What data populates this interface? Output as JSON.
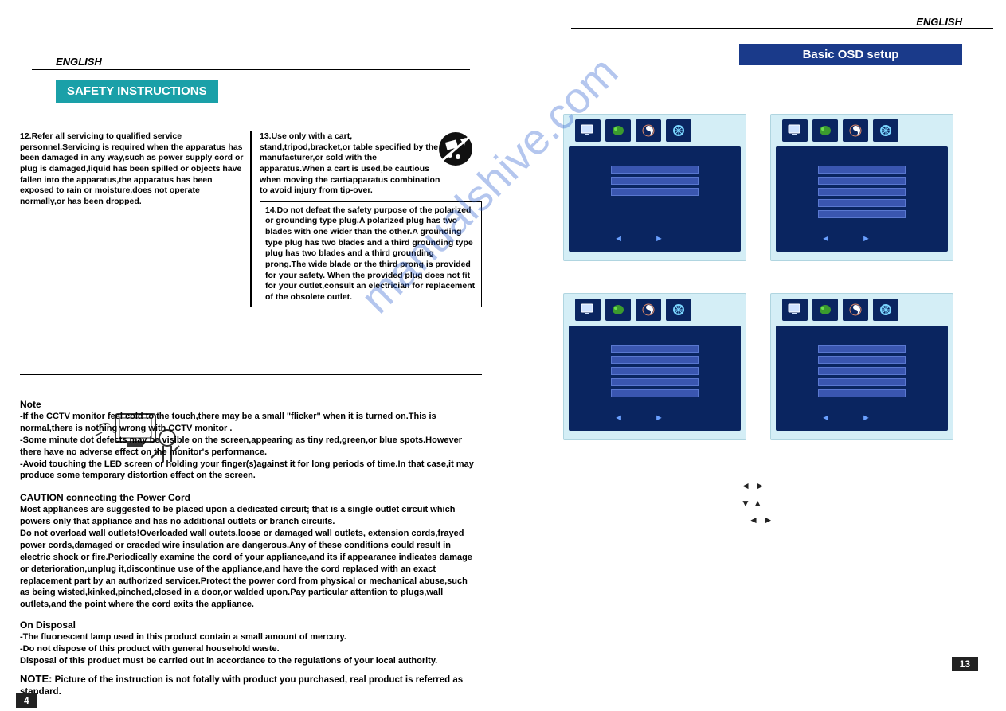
{
  "lang": "ENGLISH",
  "left": {
    "banner": "SAFETY INSTRUCTIONS",
    "item12": "12.Refer all servicing to qualified service personnel.Servicing is required when the apparatus has been damaged in any way,such as power supply cord or plug is damaged,liquid has been spilled or objects have fallen into the apparatus,the apparatus has been exposed to rain or moisture,does not operate normally,or has been dropped.",
    "item13": "13.Use only with a cart, stand,tripod,bracket,or table specified by the manufacturer,or sold with the apparatus.When a cart is used,be cautious when moving the cart\\apparatus combination to avoid injury from tip-over.",
    "item14": "14.Do not defeat the safety purpose of the polarized or grounding type plug.A polarized plug has two blades with one wider than the other.A grounding type plug has two blades and a third grounding type plug has two blades and a third grounding prong.The wide blade or the third prong is provided for your safety. When the provided plug does not fit for your outlet,consult an electrician for replacement of the obsolete outlet.",
    "noteTitle": "Note",
    "note1": "-If the CCTV monitor  feel cold to the touch,there may be a small \"flicker\" when it is turned on.This is normal,there is nothing wrong with CCTV monitor .",
    "note2": "-Some minute dot defects may be visible on the screen,appearing as tiny red,green,or blue spots.However there have no adverse effect on the monitor's performance.",
    "note3": "-Avoid touching the LED screen or holding your finger(s)against it for long periods of time.In that case,it may produce some temporary distortion effect on the screen.",
    "cautionTitle": "CAUTION connecting the Power Cord",
    "caution": "Most appliances are suggested to be placed upon a dedicated circuit; that is a single outlet circuit which powers only that appliance and has no additional outlets or branch circuits.\nDo not overload wall outlets!Overloaded wall outets,loose or damaged wall outlets, extension cords,frayed power cords,damaged or cracded wire insulation are dangerous.Any of these conditions could result in electric shock or fire.Periodically examine the cord of your appliance,and its if appearance indicates damage or deterioration,unplug it,discontinue use of the appliance,and have the cord replaced with an exact replacement part by an authorized servicer.Protect the power cord from physical or mechanical abuse,such as being wisted,kinked,pinched,closed in a door,or walded upon.Pay particular attention to plugs,wall outlets,and the point where the cord exits the appliance.",
    "disposalTitle": "On Disposal",
    "disposal1": "-The fluorescent lamp used in this product contain a small amount of mercury.",
    "disposal2": "-Do not dispose of this product with general household waste.",
    "disposal3": " Disposal of this product must be carried out in accordance to the regulations of your local authority.",
    "noteFinalLabel": "NOTE:",
    "noteFinal": "Picture of the instruction is not fotally with product  you purchased, real product is referred as standard.",
    "pageNum": "4"
  },
  "right": {
    "banner": "Basic OSD setup",
    "pageNum": "13",
    "panels": [
      {
        "rows": 3
      },
      {
        "rows": 5
      },
      {
        "rows": 5
      },
      {
        "rows": 5
      }
    ],
    "navHints": "◄  ►\n▼ ▲\n   ◄  ►"
  },
  "watermark": "manualshive.com",
  "colors": {
    "tealBanner": "#1aa0a8",
    "blueBanner": "#1a3a8a",
    "osdPanelBg": "#d4eef6",
    "osdBodyBg": "#0a2560",
    "osdRowBg": "#3a56b0"
  }
}
